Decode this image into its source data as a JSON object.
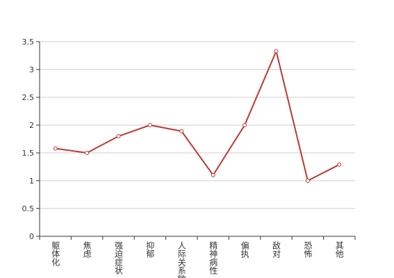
{
  "chart_data": {
    "type": "line",
    "categories": [
      "躯体化",
      "焦虑",
      "强迫症状",
      "抑郁",
      "人际关系敏感",
      "精神病性",
      "偏执",
      "敌对",
      "恐怖",
      "其他"
    ],
    "series": [
      {
        "color": "#c23531",
        "values": [
          1.58,
          1.5,
          1.8,
          2.0,
          1.89,
          1.1,
          2.0,
          3.33,
          1.0,
          1.29
        ]
      }
    ],
    "ylim": [
      0,
      3.5
    ],
    "yticks": [
      0,
      0.5,
      1,
      1.5,
      2,
      2.5,
      3,
      3.5
    ],
    "grid": true
  }
}
